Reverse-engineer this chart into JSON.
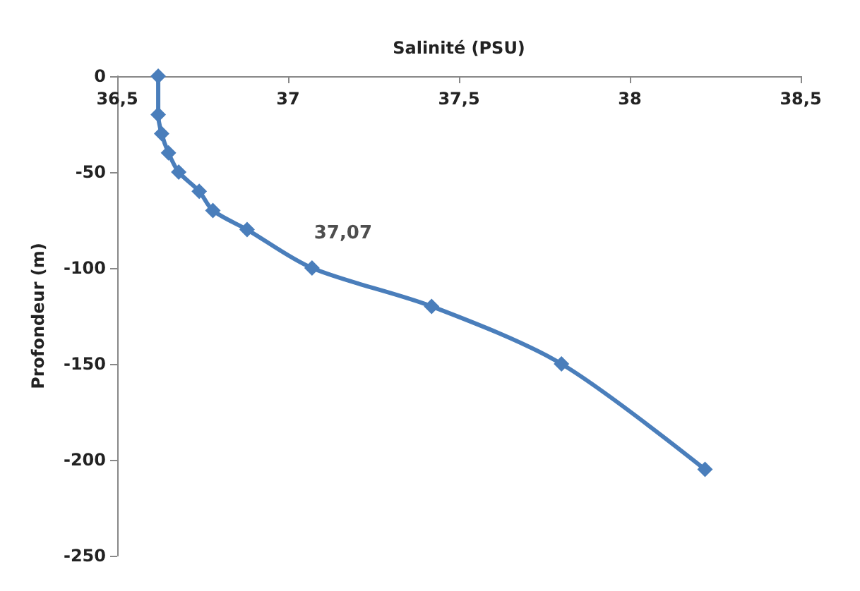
{
  "chart_data": {
    "type": "line",
    "xlabel": "Salinité (PSU)",
    "ylabel": "Profondeur (m)",
    "x": [
      36.62,
      36.62,
      36.63,
      36.65,
      36.68,
      36.74,
      36.78,
      36.88,
      37.07,
      37.42,
      37.8,
      38.22
    ],
    "series": [
      {
        "color": "#4a7ebb",
        "values": [
          0,
          -20,
          -30,
          -40,
          -50,
          -60,
          -70,
          -80,
          -100,
          -120,
          -150,
          -205
        ]
      }
    ],
    "annotations": [
      {
        "text": "37,07",
        "x": 37.07,
        "y": -100
      }
    ],
    "xlim": [
      36.5,
      38.5
    ],
    "xticks": [
      {
        "value": 36.5,
        "label": "36,5"
      },
      {
        "value": 37,
        "label": "37"
      },
      {
        "value": 37.5,
        "label": "37,5"
      },
      {
        "value": 38,
        "label": "38"
      },
      {
        "value": 38.5,
        "label": "38,5"
      }
    ],
    "ylim": [
      -250,
      0
    ],
    "yticks": [
      0,
      -50,
      -100,
      -150,
      -200,
      -250
    ],
    "grid": false,
    "marker": "diamond",
    "line_style": "solid"
  }
}
